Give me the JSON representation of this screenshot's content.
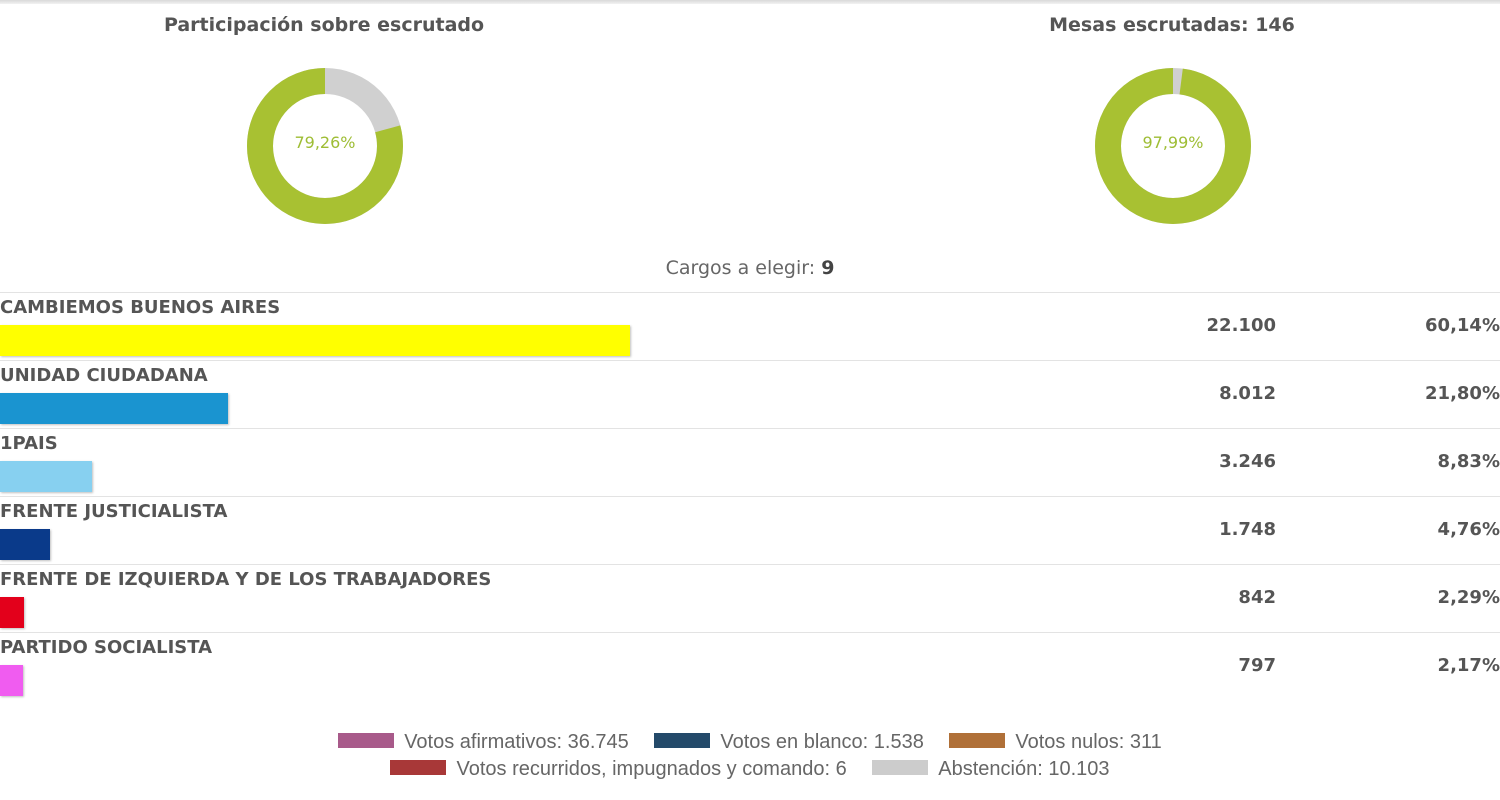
{
  "gauges": {
    "participation": {
      "title": "Participación sobre escrutado",
      "value_label": "79,26%",
      "value": 79.26,
      "color": "#a8c132",
      "rest_color": "#d0d0d0"
    },
    "mesas": {
      "title": "Mesas escrutadas: 146",
      "value_label": "97,99%",
      "value": 97.99,
      "color": "#a8c132",
      "rest_color": "#d0d0d0"
    }
  },
  "cargos": {
    "label": "Cargos a elegir:",
    "value": "9"
  },
  "parties": [
    {
      "name": "CAMBIEMOS BUENOS AIRES",
      "votes": "22.100",
      "pct": "60,14%",
      "share": 60.14,
      "color": "#ffff00"
    },
    {
      "name": "UNIDAD CIUDADANA",
      "votes": "8.012",
      "pct": "21,80%",
      "share": 21.8,
      "color": "#1a94d0"
    },
    {
      "name": "1PAIS",
      "votes": "3.246",
      "pct": "8,83%",
      "share": 8.83,
      "color": "#87d0f0"
    },
    {
      "name": "FRENTE JUSTICIALISTA",
      "votes": "1.748",
      "pct": "4,76%",
      "share": 4.76,
      "color": "#0a3a8a"
    },
    {
      "name": "FRENTE DE IZQUIERDA Y DE LOS TRABAJADORES",
      "votes": "842",
      "pct": "2,29%",
      "share": 2.29,
      "color": "#e3001b"
    },
    {
      "name": "PARTIDO SOCIALISTA",
      "votes": "797",
      "pct": "2,17%",
      "share": 2.17,
      "color": "#f05cf0"
    }
  ],
  "legend": [
    {
      "label": "Votos afirmativos: 36.745",
      "color": "#a85a8a"
    },
    {
      "label": "Votos en blanco: 1.538",
      "color": "#244a6a"
    },
    {
      "label": "Votos nulos: 311",
      "color": "#b07038"
    },
    {
      "label": "Votos recurridos, impugnados y comando: 6",
      "color": "#a83838"
    },
    {
      "label": "Abstención: 10.103",
      "color": "#cccccc"
    }
  ]
}
